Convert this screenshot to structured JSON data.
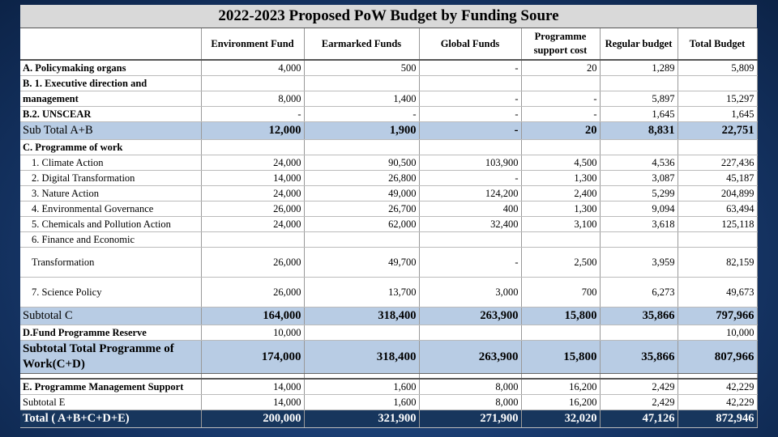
{
  "title": "2022-2023 Proposed PoW Budget by Funding Soure",
  "headers": [
    "",
    "Environment Fund",
    "Earmarked Funds",
    "Global Funds",
    "Programme support cost",
    "Regular budget",
    "Total Budget"
  ],
  "rows": [
    {
      "label": "A. Policymaking organs",
      "values": [
        "4,000",
        "500",
        "-",
        "20",
        "1,289",
        "5,809"
      ]
    },
    {
      "label": "B. 1. Executive direction and",
      "values": [
        "",
        "",
        "",
        "",
        "",
        ""
      ]
    },
    {
      "label": "management",
      "values": [
        "8,000",
        "1,400",
        "-",
        "-",
        "5,897",
        "15,297"
      ]
    },
    {
      "label": "B.2. UNSCEAR",
      "values": [
        "-",
        "-",
        "-",
        "-",
        "1,645",
        "1,645"
      ]
    },
    {
      "label": "Sub Total A+B",
      "values": [
        "12,000",
        "1,900",
        "-",
        "20",
        "8,831",
        "22,751"
      ]
    },
    {
      "label": "C. Programme of work",
      "values": [
        "",
        "",
        "",
        "",
        "",
        ""
      ]
    },
    {
      "label": "1. Climate Action",
      "values": [
        "24,000",
        "90,500",
        "103,900",
        "4,500",
        "4,536",
        "227,436"
      ]
    },
    {
      "label": "2. Digital Transformation",
      "values": [
        "14,000",
        "26,800",
        "-",
        "1,300",
        "3,087",
        "45,187"
      ]
    },
    {
      "label": "3. Nature Action",
      "values": [
        "24,000",
        "49,000",
        "124,200",
        "2,400",
        "5,299",
        "204,899"
      ]
    },
    {
      "label": "4. Environmental Governance",
      "values": [
        "26,000",
        "26,700",
        "400",
        "1,300",
        "9,094",
        "63,494"
      ]
    },
    {
      "label": "5. Chemicals and Pollution Action",
      "values": [
        "24,000",
        "62,000",
        "32,400",
        "3,100",
        "3,618",
        "125,118"
      ]
    },
    {
      "label": "6. Finance and Economic",
      "values": [
        "",
        "",
        "",
        "",
        "",
        ""
      ]
    },
    {
      "label": "Transformation",
      "values": [
        "26,000",
        "49,700",
        "-",
        "2,500",
        "3,959",
        "82,159"
      ]
    },
    {
      "label": "7. Science Policy",
      "values": [
        "26,000",
        "13,700",
        "3,000",
        "700",
        "6,273",
        "49,673"
      ]
    },
    {
      "label": "Subtotal C",
      "values": [
        "164,000",
        "318,400",
        "263,900",
        "15,800",
        "35,866",
        "797,966"
      ]
    },
    {
      "label": "D.Fund Programme Reserve",
      "values": [
        "10,000",
        "",
        "",
        "",
        "",
        "10,000"
      ]
    },
    {
      "label": "Subtotal Total Programme of Work(C+D)",
      "values": [
        "174,000",
        "318,400",
        "263,900",
        "15,800",
        "35,866",
        "807,966"
      ]
    },
    {
      "label": "E. Programme Management Support",
      "values": [
        "14,000",
        "1,600",
        "8,000",
        "16,200",
        "2,429",
        "42,229"
      ]
    },
    {
      "label": "Subtotal E",
      "values": [
        "14,000",
        "1,600",
        "8,000",
        "16,200",
        "2,429",
        "42,229"
      ]
    },
    {
      "label": "Total ( A+B+C+D+E)",
      "values": [
        "200,000",
        "321,900",
        "271,900",
        "32,020",
        "47,126",
        "872,946"
      ]
    }
  ]
}
